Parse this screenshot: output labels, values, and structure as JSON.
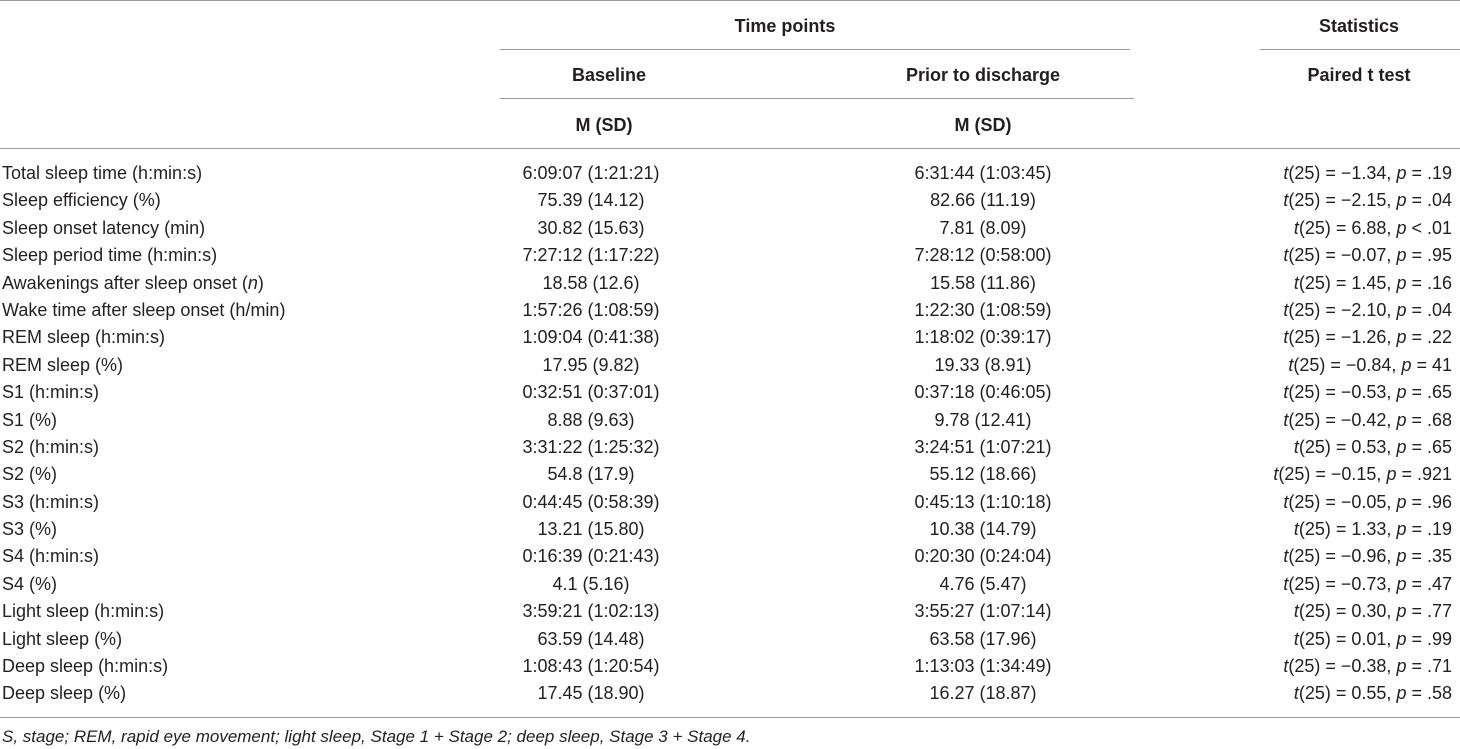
{
  "header": {
    "time_points": "Time points",
    "statistics": "Statistics",
    "baseline": "Baseline",
    "prior_to_discharge": "Prior to discharge",
    "paired_t_test": "Paired t test",
    "msd_baseline": "M (SD)",
    "msd_discharge": "M (SD)"
  },
  "rows": [
    {
      "label": "Total sleep time (h:min:s)",
      "label_italic": "",
      "baseline": "6:09:07 (1:21:21)",
      "discharge": "6:31:44 (1:03:45)",
      "t": "(25) = −1.34, ",
      "p": " = .19"
    },
    {
      "label": "Sleep efficiency (%)",
      "label_italic": "",
      "baseline": "75.39 (14.12)",
      "discharge": "82.66 (11.19)",
      "t": "(25) = −2.15, ",
      "p": " = .04"
    },
    {
      "label": "Sleep onset latency (min)",
      "label_italic": "",
      "baseline": "30.82 (15.63)",
      "discharge": "7.81 (8.09)",
      "t": "(25) = 6.88, ",
      "p": " < .01"
    },
    {
      "label": "Sleep period time (h:min:s)",
      "label_italic": "",
      "baseline": "7:27:12 (1:17:22)",
      "discharge": "7:28:12 (0:58:00)",
      "t": "(25) = −0.07, ",
      "p": " = .95"
    },
    {
      "label": "Awakenings after sleep onset (",
      "label_italic": "n",
      "label_after": ")",
      "baseline": "18.58 (12.6)",
      "discharge": "15.58 (11.86)",
      "t": "(25) = 1.45, ",
      "p": " = .16"
    },
    {
      "label": "Wake time after sleep onset (h/min)",
      "label_italic": "",
      "baseline": "1:57:26 (1:08:59)",
      "discharge": "1:22:30 (1:08:59)",
      "t": "(25) = −2.10, ",
      "p": " = .04"
    },
    {
      "label": "REM sleep (h:min:s)",
      "label_italic": "",
      "baseline": "1:09:04 (0:41:38)",
      "discharge": "1:18:02 (0:39:17)",
      "t": "(25) = −1.26, ",
      "p": " = .22"
    },
    {
      "label": "REM sleep (%)",
      "label_italic": "",
      "baseline": "17.95 (9.82)",
      "discharge": "19.33 (8.91)",
      "t": "(25) = −0.84, ",
      "p": " = 41"
    },
    {
      "label": "S1 (h:min:s)",
      "label_italic": "",
      "baseline": "0:32:51 (0:37:01)",
      "discharge": "0:37:18 (0:46:05)",
      "t": "(25) = −0.53, ",
      "p": " = .65"
    },
    {
      "label": "S1 (%)",
      "label_italic": "",
      "baseline": "8.88 (9.63)",
      "discharge": "9.78 (12.41)",
      "t": "(25) = −0.42, ",
      "p": " = .68"
    },
    {
      "label": "S2 (h:min:s)",
      "label_italic": "",
      "baseline": "3:31:22 (1:25:32)",
      "discharge": "3:24:51 (1:07:21)",
      "t": "(25) = 0.53, ",
      "p": " = .65"
    },
    {
      "label": "S2 (%)",
      "label_italic": "",
      "baseline": "54.8 (17.9)",
      "discharge": "55.12 (18.66)",
      "t": "(25) = −0.15, ",
      "p": " = .921"
    },
    {
      "label": "S3 (h:min:s)",
      "label_italic": "",
      "baseline": "0:44:45 (0:58:39)",
      "discharge": "0:45:13 (1:10:18)",
      "t": "(25) = −0.05, ",
      "p": " = .96"
    },
    {
      "label": "S3 (%)",
      "label_italic": "",
      "baseline": "13.21 (15.80)",
      "discharge": "10.38 (14.79)",
      "t": "(25) = 1.33, ",
      "p": " = .19"
    },
    {
      "label": "S4 (h:min:s)",
      "label_italic": "",
      "baseline": "0:16:39 (0:21:43)",
      "discharge": "0:20:30 (0:24:04)",
      "t": "(25) = −0.96, ",
      "p": " = .35"
    },
    {
      "label": "S4 (%)",
      "label_italic": "",
      "baseline": "4.1 (5.16)",
      "discharge": "4.76 (5.47)",
      "t": "(25) = −0.73, ",
      "p": " = .47"
    },
    {
      "label": "Light sleep (h:min:s)",
      "label_italic": "",
      "baseline": "3:59:21 (1:02:13)",
      "discharge": "3:55:27 (1:07:14)",
      "t": "(25) = 0.30, ",
      "p": " = .77"
    },
    {
      "label": "Light sleep (%)",
      "label_italic": "",
      "baseline": "63.59 (14.48)",
      "discharge": "63.58 (17.96)",
      "t": "(25) = 0.01, ",
      "p": " = .99"
    },
    {
      "label": "Deep sleep (h:min:s)",
      "label_italic": "",
      "baseline": "1:08:43 (1:20:54)",
      "discharge": "1:13:03 (1:34:49)",
      "t": "(25) = −0.38, ",
      "p": " = .71"
    },
    {
      "label": "Deep sleep (%)",
      "label_italic": "",
      "baseline": "17.45 (18.90)",
      "discharge": "16.27 (18.87)",
      "t": "(25) = 0.55, ",
      "p": " = .58"
    }
  ],
  "stat_t_symbol": "t",
  "stat_p_symbol": "p",
  "footnote": "S, stage; REM, rapid eye movement; light sleep, Stage 1 + Stage 2; deep sleep, Stage 3 + Stage 4."
}
